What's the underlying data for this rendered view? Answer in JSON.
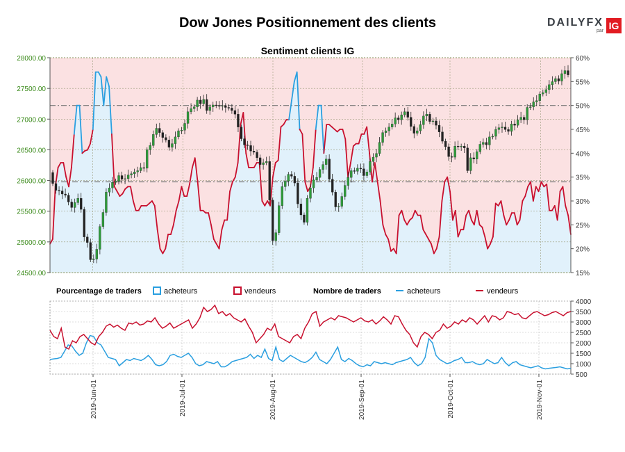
{
  "header": {
    "title": "Dow Jones Positionnement des clients",
    "logo_word": "DAILYFX",
    "logo_par": "par",
    "logo_ig": "IG"
  },
  "chart_data": [
    {
      "type": "area",
      "title": "Sentiment clients IG",
      "y_left_ticks": [
        "28000.00",
        "27500.00",
        "27000.00",
        "26500.00",
        "26000.00",
        "25500.00",
        "25000.00",
        "24500.00"
      ],
      "y_left_range": [
        24500,
        28000
      ],
      "y_right_ticks": [
        "60%",
        "55%",
        "50%",
        "45%",
        "40%",
        "35%",
        "30%",
        "25%",
        "20%",
        "15%"
      ],
      "y_right_range": [
        15,
        60
      ],
      "reference_lines": [
        50,
        34
      ],
      "long_pct": [
        21,
        22,
        33,
        37,
        38,
        38,
        35,
        33,
        37,
        44,
        50,
        50,
        40,
        40.5,
        40.7,
        42,
        45,
        57,
        57,
        56,
        50,
        56,
        54,
        44,
        33,
        32,
        31,
        31.5,
        32.5,
        33,
        33,
        30,
        28,
        28,
        29,
        29,
        29,
        29.5,
        30,
        29,
        24,
        20,
        19,
        20,
        23,
        23,
        25,
        28,
        30,
        33,
        31,
        31,
        33.5,
        37,
        39,
        34,
        28,
        28,
        27.5,
        27.5,
        25,
        22,
        21,
        20,
        24,
        26,
        26,
        32,
        34,
        35,
        38,
        46,
        48.5,
        40,
        37,
        37,
        37,
        38,
        38,
        30,
        29,
        30,
        29,
        35,
        38,
        38.5,
        45.5,
        46,
        47,
        47,
        51,
        55,
        57,
        45,
        44,
        34,
        32,
        33,
        37,
        45,
        50,
        50,
        40,
        46,
        46,
        45.5,
        45,
        44.5,
        45,
        45,
        43,
        35,
        38,
        41.5,
        42,
        42,
        44,
        44,
        45.5,
        40,
        34,
        38,
        34,
        30,
        25,
        23,
        22,
        19.5,
        20,
        19,
        27,
        28,
        26,
        25,
        26,
        26.5,
        28,
        27,
        27,
        24,
        23,
        22,
        21,
        19,
        20,
        22.5,
        30,
        34,
        35,
        32,
        26,
        28,
        22.5,
        24,
        24,
        27,
        28,
        26,
        25,
        28,
        25,
        24.5,
        22.5,
        20,
        21,
        22.5,
        29.5,
        29,
        30,
        27,
        25,
        26,
        27.5,
        27.5,
        25,
        26,
        30,
        31,
        33,
        34,
        30,
        33,
        32,
        34,
        33,
        33.5,
        28,
        28,
        29,
        26,
        32,
        33,
        29,
        27,
        23
      ],
      "price": {
        "open": [
          26130,
          25950,
          25840,
          25830,
          25780,
          25760,
          25650,
          25560,
          25640,
          25710,
          25530,
          25080,
          24990,
          24710,
          24720,
          24880,
          25250,
          25480,
          25810,
          25880,
          25970,
          25990,
          26080,
          26020,
          26030,
          26090,
          26110,
          26140,
          26160,
          26210,
          26200,
          26500,
          26570,
          26750,
          26850,
          26780,
          26700,
          26660,
          26540,
          26600,
          26710,
          26810,
          26820,
          26930,
          27120,
          27170,
          27200,
          27310,
          27250,
          27320,
          27140,
          27200,
          27230,
          27220,
          27210,
          27220,
          27190,
          27180,
          27140,
          27080,
          26870,
          26680,
          26580,
          26570,
          26480,
          26460,
          26370,
          26260,
          26290,
          26310,
          25680,
          25020,
          25150,
          25590,
          25900,
          25990,
          26100,
          26070,
          25960,
          25620,
          25440,
          25320,
          25710,
          25880,
          26010,
          26050,
          26180,
          26260,
          26350,
          26020,
          25810,
          25570,
          25580,
          25740,
          25920,
          26050,
          26160,
          26150,
          26200,
          26190,
          26080,
          26140,
          26310,
          26380,
          26440,
          26620,
          26780,
          26810,
          26870,
          26920,
          27020,
          26990,
          27070,
          27120,
          27030,
          26880,
          26770,
          26810,
          26910,
          27050,
          27080,
          26960,
          26970,
          26900,
          26790,
          26640,
          26550,
          26390,
          26380,
          26560,
          26550,
          26560,
          26530,
          26160,
          26370,
          26350,
          26470,
          26590,
          26620,
          26580,
          26710,
          26720,
          26830,
          26860,
          26870,
          26830,
          26800,
          26920,
          26900,
          26990,
          27030,
          26990,
          27190,
          27200,
          27280,
          27300,
          27410,
          27430,
          27480,
          27560,
          27610,
          27660,
          27620,
          27740,
          27790
        ],
        "close": [
          25950,
          25840,
          25830,
          25780,
          25760,
          25650,
          25560,
          25640,
          25710,
          25530,
          25080,
          24990,
          24710,
          24720,
          24880,
          25250,
          25480,
          25810,
          25880,
          25970,
          25990,
          26080,
          26020,
          26030,
          26090,
          26110,
          26140,
          26160,
          26210,
          26200,
          26500,
          26570,
          26750,
          26850,
          26780,
          26700,
          26660,
          26540,
          26600,
          26710,
          26810,
          26820,
          26930,
          27120,
          27170,
          27200,
          27310,
          27250,
          27320,
          27140,
          27200,
          27230,
          27220,
          27210,
          27220,
          27190,
          27180,
          27140,
          27080,
          26870,
          26680,
          26580,
          26570,
          26480,
          26460,
          26370,
          26260,
          26290,
          26310,
          25680,
          25020,
          25150,
          25590,
          25900,
          25990,
          26100,
          26070,
          25960,
          25620,
          25440,
          25320,
          25710,
          25880,
          26010,
          26050,
          26180,
          26260,
          26350,
          26020,
          25810,
          25570,
          25580,
          25740,
          25920,
          26050,
          26160,
          26150,
          26200,
          26190,
          26080,
          26140,
          26310,
          26380,
          26440,
          26620,
          26780,
          26810,
          26870,
          26920,
          27020,
          26990,
          27070,
          27120,
          27030,
          26880,
          26770,
          26810,
          26910,
          27050,
          27080,
          26960,
          26970,
          26900,
          26790,
          26640,
          26550,
          26390,
          26380,
          26560,
          26550,
          26560,
          26530,
          26160,
          26370,
          26350,
          26470,
          26590,
          26620,
          26580,
          26710,
          26720,
          26830,
          26860,
          26870,
          26830,
          26800,
          26920,
          26900,
          26990,
          27030,
          26990,
          27190,
          27200,
          27280,
          27300,
          27410,
          27430,
          27480,
          27560,
          27610,
          27660,
          27620,
          27740,
          27790,
          27720
        ]
      }
    },
    {
      "type": "line",
      "legend_pct_label": "Pourcentage de traders",
      "legend_count_label": "Nombre de traders",
      "legend_long": "acheteurs",
      "legend_short": "vendeurs",
      "y_right_ticks": [
        "4000",
        "3500",
        "3000",
        "2500",
        "2000",
        "1500",
        "1000",
        "500"
      ],
      "y_right_range": [
        500,
        4000
      ],
      "x_ticks": [
        "2019-Jun-01",
        "2019-Jul-01",
        "2019-Aug-01",
        "2019-Sep-01",
        "2019-Oct-01",
        "2019-Nov-01"
      ],
      "series": [
        {
          "name": "acheteurs",
          "values": [
            1200,
            1230,
            1250,
            1300,
            1600,
            1900,
            1850,
            1600,
            1400,
            1500,
            2000,
            2350,
            2300,
            2000,
            1900,
            1600,
            1300,
            1250,
            1200,
            900,
            1050,
            1200,
            1150,
            1250,
            1200,
            1150,
            1250,
            1400,
            1200,
            950,
            900,
            950,
            1100,
            1400,
            1450,
            1350,
            1300,
            1400,
            1500,
            1300,
            1000,
            900,
            950,
            1100,
            1050,
            1000,
            1100,
            850,
            850,
            950,
            1100,
            1150,
            1200,
            1250,
            1300,
            1450,
            1250,
            1400,
            1300,
            1700,
            1250,
            1150,
            1800,
            1200,
            1100,
            1250,
            1400,
            1300,
            1200,
            1100,
            1050,
            1150,
            1300,
            1550,
            1200,
            1100,
            1000,
            1200,
            1500,
            1800,
            1200,
            1100,
            1250,
            1150,
            1000,
            900,
            850,
            950,
            900,
            1100,
            1050,
            1000,
            1050,
            1000,
            950,
            1050,
            1100,
            1150,
            1200,
            1300,
            1050,
            900,
            1000,
            1300,
            2200,
            2000,
            1400,
            1200,
            1100,
            1000,
            1050,
            1150,
            1200,
            1300,
            1050,
            1050,
            1100,
            1000,
            950,
            1000,
            1200,
            1100,
            1000,
            1050,
            1300,
            1050,
            900,
            1050,
            1100,
            950,
            900,
            850,
            800,
            850,
            900,
            800,
            750,
            780,
            800,
            820,
            850,
            800,
            750,
            780
          ]
        },
        {
          "name": "vendeurs",
          "values": [
            2600,
            2300,
            2200,
            2700,
            1800,
            1700,
            2100,
            2000,
            2300,
            2400,
            2200,
            2000,
            1900,
            2300,
            2500,
            2800,
            2900,
            2750,
            2850,
            2700,
            2600,
            2950,
            2900,
            3000,
            2850,
            2900,
            3050,
            3000,
            3200,
            2900,
            2700,
            2800,
            2950,
            2700,
            2800,
            2900,
            3000,
            3100,
            2700,
            2900,
            3200,
            3700,
            3500,
            3600,
            3800,
            3400,
            3500,
            3300,
            3400,
            3200,
            3100,
            3000,
            3150,
            2800,
            2500,
            2000,
            2200,
            2400,
            2700,
            2600,
            2900,
            2300,
            2200,
            2100,
            2000,
            2300,
            2400,
            2200,
            2700,
            3000,
            3400,
            3500,
            2800,
            3000,
            3100,
            3200,
            3100,
            3300,
            3250,
            3200,
            3100,
            3000,
            3100,
            3200,
            3050,
            3000,
            3100,
            2900,
            3050,
            3250,
            3100,
            2900,
            3300,
            3250,
            2900,
            2600,
            2400,
            2000,
            1800,
            2300,
            2500,
            2400,
            2200,
            2500,
            2600,
            2900,
            2700,
            2800,
            3000,
            2900,
            3100,
            3000,
            3200,
            3100,
            2900,
            3100,
            3300,
            3000,
            3300,
            3250,
            3100,
            3200,
            3500,
            3450,
            3350,
            3400,
            3200,
            3150,
            3300,
            3450,
            3500,
            3400,
            3300,
            3350,
            3450,
            3500,
            3400,
            3300,
            3450,
            3500
          ]
        }
      ]
    }
  ]
}
